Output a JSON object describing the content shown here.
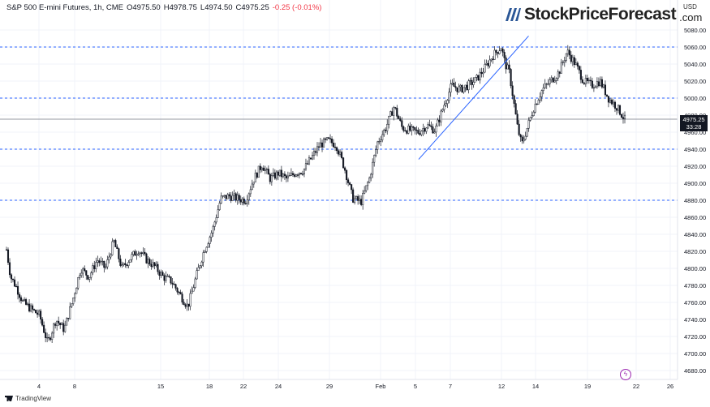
{
  "header": {
    "instrument": "S&P 500 E-mini Futures, 1h, CME",
    "open": "O4975.50",
    "high": "H4978.75",
    "low": "L4974.50",
    "close": "C4975.25",
    "change": "-0.25 (-0.01%)"
  },
  "logo": {
    "brand": "StockPriceForecast",
    "domain": ".com"
  },
  "currency": "USD",
  "price_tag": {
    "price": "4975.25",
    "countdown": "33:28"
  },
  "footer": {
    "brand": "TradingView"
  },
  "colors": {
    "grid": "#f0f3fa",
    "candle": "#131722",
    "support": "#2962ff",
    "trendline": "#2962ff",
    "current_line": "#9598a1"
  },
  "icons": {
    "logo": "bars-logo-icon",
    "watermark": "tradingview-logo-icon",
    "timezone": "lightning-icon"
  },
  "chart_data": {
    "type": "candlestick",
    "y_axis": {
      "range": [
        4680,
        5080
      ],
      "ticks": [
        4680,
        4700,
        4720,
        4740,
        4760,
        4780,
        4800,
        4820,
        4840,
        4860,
        4880,
        4900,
        4920,
        4940,
        4960,
        4980,
        5000,
        5020,
        5040,
        5060,
        5080
      ]
    },
    "x_axis": {
      "tick_labels": [
        "4",
        "8",
        "15",
        "18",
        "22",
        "24",
        "29",
        "Feb",
        "5",
        "7",
        "12",
        "14",
        "19",
        "22",
        "26"
      ]
    },
    "grid": true,
    "horizontal_levels": [
      5060,
      5000,
      4940,
      4880
    ],
    "current_price": 4975.25,
    "trendline": {
      "from": {
        "x": "5",
        "y": 4928
      },
      "to": {
        "x": "12",
        "y": 5073
      }
    },
    "close_path": [
      {
        "x": 0.0,
        "y": 4822
      },
      {
        "x": 0.5,
        "y": 4790
      },
      {
        "x": 1.2,
        "y": 4778
      },
      {
        "x": 2.0,
        "y": 4760
      },
      {
        "x": 3.0,
        "y": 4752
      },
      {
        "x": 4.0,
        "y": 4745
      },
      {
        "x": 5.0,
        "y": 4712
      },
      {
        "x": 6.0,
        "y": 4740
      },
      {
        "x": 7.0,
        "y": 4728
      },
      {
        "x": 8.0,
        "y": 4762
      },
      {
        "x": 9.0,
        "y": 4800
      },
      {
        "x": 10.0,
        "y": 4790
      },
      {
        "x": 11.0,
        "y": 4810
      },
      {
        "x": 12.0,
        "y": 4800
      },
      {
        "x": 13.0,
        "y": 4832
      },
      {
        "x": 14.0,
        "y": 4800
      },
      {
        "x": 15.0,
        "y": 4812
      },
      {
        "x": 16.0,
        "y": 4822
      },
      {
        "x": 17.0,
        "y": 4810
      },
      {
        "x": 18.0,
        "y": 4802
      },
      {
        "x": 19.0,
        "y": 4790
      },
      {
        "x": 20.0,
        "y": 4785
      },
      {
        "x": 21.0,
        "y": 4770
      },
      {
        "x": 22.0,
        "y": 4755
      },
      {
        "x": 23.0,
        "y": 4790
      },
      {
        "x": 24.0,
        "y": 4822
      },
      {
        "x": 25.0,
        "y": 4845
      },
      {
        "x": 26.0,
        "y": 4882
      },
      {
        "x": 27.0,
        "y": 4885
      },
      {
        "x": 28.0,
        "y": 4882
      },
      {
        "x": 29.0,
        "y": 4880
      },
      {
        "x": 30.0,
        "y": 4905
      },
      {
        "x": 31.0,
        "y": 4922
      },
      {
        "x": 32.0,
        "y": 4905
      },
      {
        "x": 33.0,
        "y": 4912
      },
      {
        "x": 34.0,
        "y": 4905
      },
      {
        "x": 35.0,
        "y": 4912
      },
      {
        "x": 36.0,
        "y": 4915
      },
      {
        "x": 37.0,
        "y": 4930
      },
      {
        "x": 38.0,
        "y": 4945
      },
      {
        "x": 39.0,
        "y": 4950
      },
      {
        "x": 40.0,
        "y": 4945
      },
      {
        "x": 41.0,
        "y": 4918
      },
      {
        "x": 42.0,
        "y": 4882
      },
      {
        "x": 43.0,
        "y": 4878
      },
      {
        "x": 44.0,
        "y": 4905
      },
      {
        "x": 45.0,
        "y": 4948
      },
      {
        "x": 46.0,
        "y": 4965
      },
      {
        "x": 47.0,
        "y": 4990
      },
      {
        "x": 48.0,
        "y": 4965
      },
      {
        "x": 49.0,
        "y": 4962
      },
      {
        "x": 50.0,
        "y": 4960
      },
      {
        "x": 51.0,
        "y": 4968
      },
      {
        "x": 52.0,
        "y": 4962
      },
      {
        "x": 53.0,
        "y": 4990
      },
      {
        "x": 54.0,
        "y": 5015
      },
      {
        "x": 55.0,
        "y": 5010
      },
      {
        "x": 56.0,
        "y": 5015
      },
      {
        "x": 57.0,
        "y": 5022
      },
      {
        "x": 58.0,
        "y": 5035
      },
      {
        "x": 59.0,
        "y": 5050
      },
      {
        "x": 60.0,
        "y": 5060
      },
      {
        "x": 60.5,
        "y": 5040
      },
      {
        "x": 61.0,
        "y": 5030
      },
      {
        "x": 62.0,
        "y": 4965
      },
      {
        "x": 62.5,
        "y": 4945
      },
      {
        "x": 63.0,
        "y": 4960
      },
      {
        "x": 64.0,
        "y": 4990
      },
      {
        "x": 65.0,
        "y": 5010
      },
      {
        "x": 66.0,
        "y": 5020
      },
      {
        "x": 67.0,
        "y": 5030
      },
      {
        "x": 68.0,
        "y": 5055
      },
      {
        "x": 69.0,
        "y": 5040
      },
      {
        "x": 70.0,
        "y": 5020
      },
      {
        "x": 71.0,
        "y": 5015
      },
      {
        "x": 72.0,
        "y": 5020
      },
      {
        "x": 73.0,
        "y": 5000
      },
      {
        "x": 74.0,
        "y": 4990
      },
      {
        "x": 75.0,
        "y": 4975
      }
    ]
  }
}
